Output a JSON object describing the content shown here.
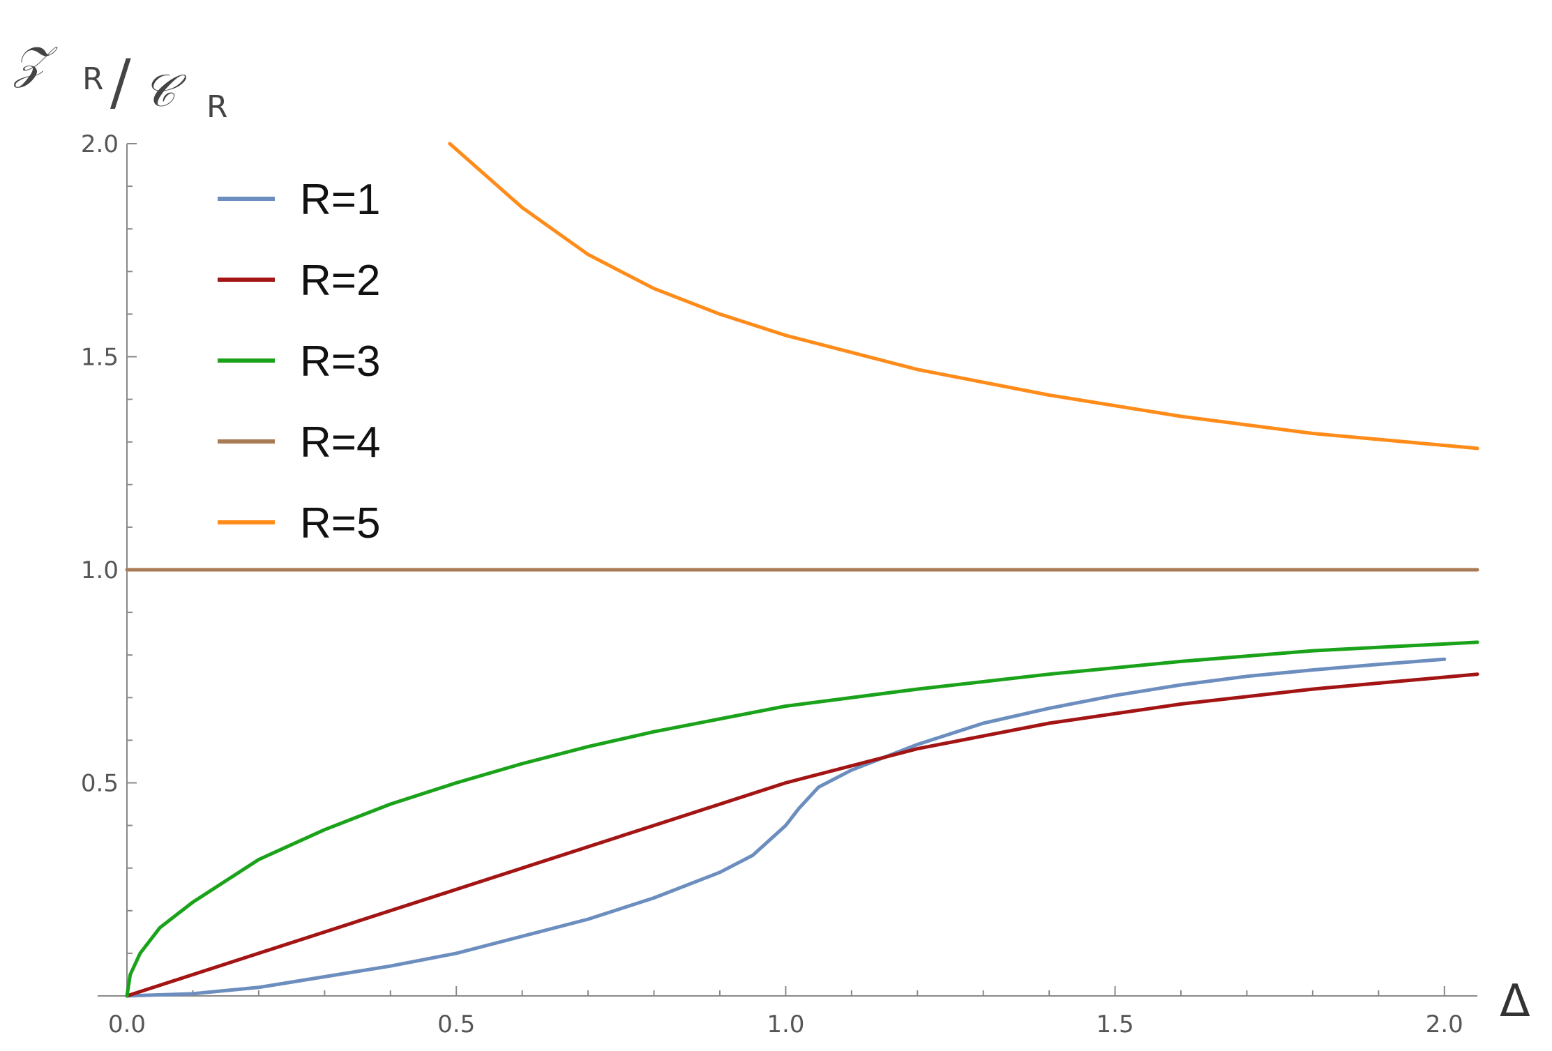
{
  "chart_data": {
    "type": "line",
    "xlabel": "Δ",
    "ylabel": "𝒵R / 𝒞R",
    "ylabel_parts": {
      "num": "𝒵",
      "num_sub": "R",
      "slash": "/",
      "den": "𝒞",
      "den_sub": "R"
    },
    "xlim": [
      0,
      2.05
    ],
    "ylim": [
      0,
      2.0
    ],
    "x_ticks": [
      "0.0",
      "0.5",
      "1.0",
      "1.5",
      "2.0"
    ],
    "y_ticks": [
      "0.5",
      "1.0",
      "1.5",
      "2.0"
    ],
    "grid": false,
    "legend_position": "top-left",
    "series": [
      {
        "name": "R=1",
        "color": "#6c8ebf",
        "x": [
          0,
          0.1,
          0.2,
          0.3,
          0.4,
          0.5,
          0.6,
          0.7,
          0.8,
          0.9,
          0.95,
          1.0,
          1.02,
          1.05,
          1.1,
          1.2,
          1.3,
          1.4,
          1.5,
          1.6,
          1.7,
          1.8,
          1.9,
          2.0
        ],
        "y": [
          0,
          0.005,
          0.02,
          0.045,
          0.07,
          0.1,
          0.14,
          0.18,
          0.23,
          0.29,
          0.33,
          0.4,
          0.44,
          0.49,
          0.53,
          0.59,
          0.64,
          0.675,
          0.705,
          0.73,
          0.75,
          0.765,
          0.778,
          0.79
        ]
      },
      {
        "name": "R=2",
        "color": "#a31515",
        "x": [
          0,
          0.2,
          0.4,
          0.6,
          0.8,
          1.0,
          1.2,
          1.4,
          1.6,
          1.8,
          2.05
        ],
        "y": [
          0,
          0.1,
          0.2,
          0.3,
          0.4,
          0.5,
          0.58,
          0.64,
          0.685,
          0.72,
          0.755
        ]
      },
      {
        "name": "R=3",
        "color": "#1aa31a",
        "x": [
          0,
          0.005,
          0.02,
          0.05,
          0.1,
          0.2,
          0.3,
          0.4,
          0.5,
          0.6,
          0.7,
          0.8,
          1.0,
          1.2,
          1.4,
          1.6,
          1.8,
          2.05
        ],
        "y": [
          0,
          0.05,
          0.1,
          0.16,
          0.22,
          0.32,
          0.39,
          0.45,
          0.5,
          0.545,
          0.585,
          0.62,
          0.68,
          0.72,
          0.755,
          0.785,
          0.81,
          0.83
        ]
      },
      {
        "name": "R=4",
        "color": "#a87b55",
        "x": [
          0,
          2.05
        ],
        "y": [
          1.0,
          1.0
        ]
      },
      {
        "name": "R=5",
        "color": "#ff8c1a",
        "x": [
          0.49,
          0.6,
          0.7,
          0.8,
          0.9,
          1.0,
          1.2,
          1.4,
          1.6,
          1.8,
          2.05
        ],
        "y": [
          2.0,
          1.85,
          1.74,
          1.66,
          1.6,
          1.55,
          1.47,
          1.41,
          1.36,
          1.32,
          1.285
        ]
      }
    ]
  }
}
